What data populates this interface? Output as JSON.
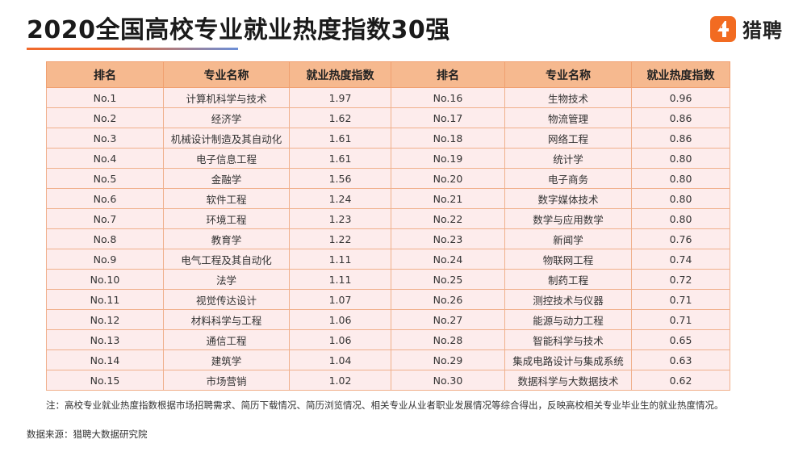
{
  "title": "2020全国高校专业就业热度指数30强",
  "brand": {
    "name": "猎聘",
    "logo_icon": "liepin-logo-icon",
    "color": "#f26b21"
  },
  "table": {
    "headers": [
      "排名",
      "专业名称",
      "就业热度指数",
      "排名",
      "专业名称",
      "就业热度指数"
    ],
    "rows": [
      {
        "rank_a": "No.1",
        "name_a": "计算机科学与技术",
        "index_a": "1.97",
        "rank_b": "No.16",
        "name_b": "生物技术",
        "index_b": "0.96"
      },
      {
        "rank_a": "No.2",
        "name_a": "经济学",
        "index_a": "1.62",
        "rank_b": "No.17",
        "name_b": "物流管理",
        "index_b": "0.86"
      },
      {
        "rank_a": "No.3",
        "name_a": "机械设计制造及其自动化",
        "index_a": "1.61",
        "rank_b": "No.18",
        "name_b": "网络工程",
        "index_b": "0.86"
      },
      {
        "rank_a": "No.4",
        "name_a": "电子信息工程",
        "index_a": "1.61",
        "rank_b": "No.19",
        "name_b": "统计学",
        "index_b": "0.80"
      },
      {
        "rank_a": "No.5",
        "name_a": "金融学",
        "index_a": "1.56",
        "rank_b": "No.20",
        "name_b": "电子商务",
        "index_b": "0.80"
      },
      {
        "rank_a": "No.6",
        "name_a": "软件工程",
        "index_a": "1.24",
        "rank_b": "No.21",
        "name_b": "数字媒体技术",
        "index_b": "0.80"
      },
      {
        "rank_a": "No.7",
        "name_a": "环境工程",
        "index_a": "1.23",
        "rank_b": "No.22",
        "name_b": "数学与应用数学",
        "index_b": "0.80"
      },
      {
        "rank_a": "No.8",
        "name_a": "教育学",
        "index_a": "1.22",
        "rank_b": "No.23",
        "name_b": "新闻学",
        "index_b": "0.76"
      },
      {
        "rank_a": "No.9",
        "name_a": "电气工程及其自动化",
        "index_a": "1.11",
        "rank_b": "No.24",
        "name_b": "物联网工程",
        "index_b": "0.74"
      },
      {
        "rank_a": "No.10",
        "name_a": "法学",
        "index_a": "1.11",
        "rank_b": "No.25",
        "name_b": "制药工程",
        "index_b": "0.72"
      },
      {
        "rank_a": "No.11",
        "name_a": "视觉传达设计",
        "index_a": "1.07",
        "rank_b": "No.26",
        "name_b": "测控技术与仪器",
        "index_b": "0.71"
      },
      {
        "rank_a": "No.12",
        "name_a": "材料科学与工程",
        "index_a": "1.06",
        "rank_b": "No.27",
        "name_b": "能源与动力工程",
        "index_b": "0.71"
      },
      {
        "rank_a": "No.13",
        "name_a": "通信工程",
        "index_a": "1.06",
        "rank_b": "No.28",
        "name_b": "智能科学与技术",
        "index_b": "0.65"
      },
      {
        "rank_a": "No.14",
        "name_a": "建筑学",
        "index_a": "1.04",
        "rank_b": "No.29",
        "name_b": "集成电路设计与集成系统",
        "index_b": "0.63"
      },
      {
        "rank_a": "No.15",
        "name_a": "市场营销",
        "index_a": "1.02",
        "rank_b": "No.30",
        "name_b": "数据科学与大数据技术",
        "index_b": "0.62"
      }
    ]
  },
  "note": "注：高校专业就业热度指数根据市场招聘需求、简历下载情况、简历浏览情况、相关专业从业者职业发展情况等综合得出，反映高校相关专业毕业生的就业热度情况。",
  "source": "数据来源：猎聘大数据研究院",
  "colors": {
    "header_bg": "#f6b98f",
    "row_bg": "#fdecec",
    "border": "#f0b08c",
    "accent": "#f06a2c"
  }
}
